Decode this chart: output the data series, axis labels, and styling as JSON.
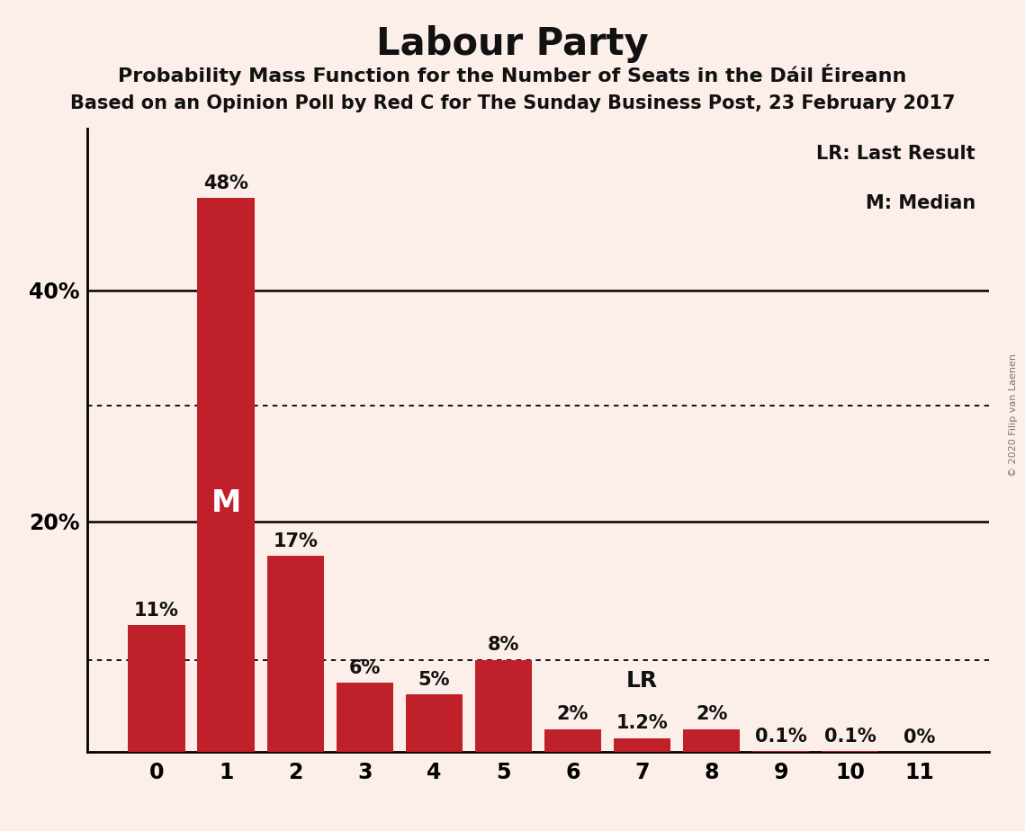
{
  "title": "Labour Party",
  "subtitle1": "Probability Mass Function for the Number of Seats in the Dáil Éireann",
  "subtitle2": "Based on an Opinion Poll by Red C for The Sunday Business Post, 23 February 2017",
  "watermark": "© 2020 Filip van Laenen",
  "categories": [
    0,
    1,
    2,
    3,
    4,
    5,
    6,
    7,
    8,
    9,
    10,
    11
  ],
  "values": [
    11,
    48,
    17,
    6,
    5,
    8,
    2,
    1.2,
    2,
    0.1,
    0.1,
    0
  ],
  "labels": [
    "11%",
    "48%",
    "17%",
    "6%",
    "5%",
    "8%",
    "2%",
    "1.2%",
    "2%",
    "0.1%",
    "0.1%",
    "0%"
  ],
  "bar_color": "#C0202A",
  "background_color": "#FCEEE8",
  "text_color": "#111111",
  "median_bar": 1,
  "lr_bar": 7,
  "lr_label": "LR",
  "median_label": "M",
  "dotted_line_1": 30,
  "dotted_line_2": 8,
  "solid_lines": [
    20,
    40
  ],
  "ylim": [
    0,
    54
  ],
  "legend_lr": "LR: Last Result",
  "legend_m": "M: Median",
  "label_fontsize": 15,
  "tick_fontsize": 17,
  "legend_fontsize": 15,
  "title_fontsize": 30,
  "subtitle1_fontsize": 16,
  "subtitle2_fontsize": 15,
  "m_fontsize": 24,
  "lr_fontsize": 18
}
